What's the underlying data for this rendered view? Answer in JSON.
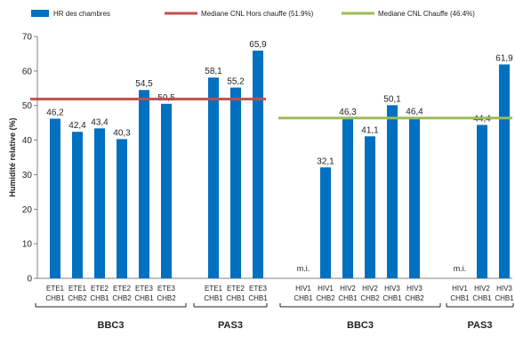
{
  "chart_data": {
    "type": "bar",
    "ylabel": "Humidité relative (%)",
    "ylim": [
      0,
      70
    ],
    "yticks": [
      0,
      10,
      20,
      30,
      40,
      50,
      60,
      70
    ],
    "grid": false,
    "legend_position": "top",
    "bar_color": "#0070c0",
    "series": [
      {
        "name": "HR des chambres",
        "values": [
          46.2,
          42.4,
          43.4,
          40.3,
          54.5,
          50.5,
          58.1,
          55.2,
          65.9,
          null,
          32.1,
          46.3,
          41.1,
          50.1,
          46.4,
          null,
          44.4,
          61.9
        ],
        "labels": [
          "46,2",
          "42,4",
          "43,4",
          "40,3",
          "54,5",
          "50,5",
          "58,1",
          "55,2",
          "65,9",
          "m.i.",
          "32,1",
          "46,3",
          "41,1",
          "50,1",
          "46,4",
          "m.i.",
          "44,4",
          "61,9"
        ]
      }
    ],
    "categories": [
      [
        "ETE1",
        "CHB1"
      ],
      [
        "ETE1",
        "CHB2"
      ],
      [
        "ETE2",
        "CHB1"
      ],
      [
        "ETE2",
        "CHB2"
      ],
      [
        "ETE3",
        "CHB1"
      ],
      [
        "ETE3",
        "CHB2"
      ],
      [
        "ETE1",
        "CHB1"
      ],
      [
        "ETE2",
        "CHB1"
      ],
      [
        "ETE3",
        "CHB1"
      ],
      [
        "HIV1",
        "CHB1"
      ],
      [
        "HIV1",
        "CHB2"
      ],
      [
        "HIV2",
        "CHB1"
      ],
      [
        "HIV2",
        "CHB2"
      ],
      [
        "HIV3",
        "CHB1"
      ],
      [
        "HIV3",
        "CHB2"
      ],
      [
        "HIV1",
        "CHB1"
      ],
      [
        "HIV2",
        "CHB1"
      ],
      [
        "HIV3",
        "CHB1"
      ]
    ],
    "reference_lines": [
      {
        "name": "Mediane CNL Hors chauffe (51.9%)",
        "value": 51.9,
        "color": "#c0504d",
        "from_index": 0,
        "to_index": 8
      },
      {
        "name": "Mediane CNL Chauffe (46.4%)",
        "value": 46.4,
        "color": "#9bbb59",
        "from_index": 9,
        "to_index": 17
      }
    ],
    "groups": [
      {
        "label": "BBC3",
        "from_index": 0,
        "to_index": 5
      },
      {
        "label": "PAS3",
        "from_index": 6,
        "to_index": 8
      },
      {
        "label": "BBC3",
        "from_index": 9,
        "to_index": 14
      },
      {
        "label": "PAS3",
        "from_index": 15,
        "to_index": 17
      }
    ]
  }
}
